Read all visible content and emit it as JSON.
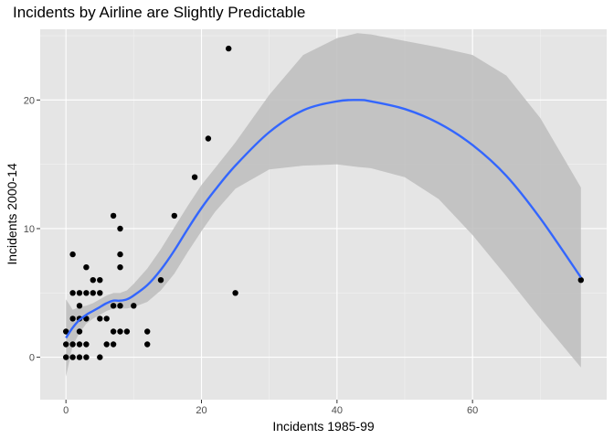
{
  "chart_data": {
    "type": "scatter",
    "title": "Incidents by Airline are Slightly Predictable",
    "xlabel": "Incidents 1985-99",
    "ylabel": "Incidents 2000-14",
    "xlim": [
      -3.8,
      79.8
    ],
    "ylim": [
      -3.3,
      25.5
    ],
    "x_ticks": [
      0,
      20,
      40,
      60
    ],
    "y_ticks": [
      0,
      10,
      20
    ],
    "grid": true,
    "background": "#e5e5e5",
    "points": [
      [
        0,
        0
      ],
      [
        0,
        1
      ],
      [
        0,
        2
      ],
      [
        1,
        0
      ],
      [
        1,
        1
      ],
      [
        1,
        3
      ],
      [
        1,
        5
      ],
      [
        1,
        8
      ],
      [
        2,
        0
      ],
      [
        2,
        1
      ],
      [
        2,
        2
      ],
      [
        2,
        3
      ],
      [
        2,
        4
      ],
      [
        2,
        5
      ],
      [
        3,
        0
      ],
      [
        3,
        1
      ],
      [
        3,
        3
      ],
      [
        3,
        5
      ],
      [
        3,
        7
      ],
      [
        4,
        5
      ],
      [
        4,
        6
      ],
      [
        5,
        0
      ],
      [
        5,
        3
      ],
      [
        5,
        5
      ],
      [
        5,
        6
      ],
      [
        6,
        1
      ],
      [
        6,
        3
      ],
      [
        7,
        1
      ],
      [
        7,
        2
      ],
      [
        7,
        4
      ],
      [
        7,
        11
      ],
      [
        8,
        2
      ],
      [
        8,
        4
      ],
      [
        8,
        7
      ],
      [
        8,
        8
      ],
      [
        8,
        10
      ],
      [
        9,
        2
      ],
      [
        10,
        4
      ],
      [
        12,
        1
      ],
      [
        12,
        2
      ],
      [
        14,
        6
      ],
      [
        16,
        11
      ],
      [
        19,
        14
      ],
      [
        21,
        17
      ],
      [
        24,
        24
      ],
      [
        25,
        5
      ],
      [
        76,
        6
      ]
    ],
    "smooth": {
      "name": "loess fit",
      "x": [
        0,
        1,
        2,
        3,
        4,
        5,
        6,
        7,
        8,
        9,
        10,
        12,
        14,
        16,
        18,
        20,
        22,
        25,
        30,
        35,
        40,
        43,
        45,
        50,
        55,
        60,
        65,
        70,
        76
      ],
      "y": [
        1.5,
        2.3,
        2.9,
        3.3,
        3.6,
        3.9,
        4.2,
        4.4,
        4.4,
        4.5,
        4.8,
        5.6,
        6.8,
        8.3,
        10.0,
        11.6,
        13.0,
        14.9,
        17.5,
        19.2,
        19.9,
        20.0,
        19.9,
        19.3,
        18.2,
        16.5,
        14.1,
        10.8,
        6.2
      ],
      "lower": [
        -1.5,
        0.9,
        1.9,
        2.6,
        3.0,
        3.3,
        3.6,
        3.8,
        3.8,
        3.8,
        3.9,
        4.3,
        5.2,
        6.5,
        8.2,
        9.8,
        11.3,
        13.1,
        14.6,
        14.9,
        15.0,
        14.8,
        14.7,
        14.0,
        12.3,
        9.5,
        6.3,
        3.0,
        -0.8
      ],
      "upper": [
        4.5,
        3.7,
        3.9,
        4.0,
        4.2,
        4.5,
        4.8,
        5.0,
        5.0,
        5.2,
        5.7,
        6.9,
        8.4,
        10.1,
        11.8,
        13.4,
        14.7,
        16.7,
        20.4,
        23.5,
        24.8,
        25.2,
        25.1,
        24.6,
        24.1,
        23.5,
        21.9,
        18.6,
        13.2
      ],
      "line_color": "#3366ff",
      "band_color": "#bdbdbd"
    }
  }
}
